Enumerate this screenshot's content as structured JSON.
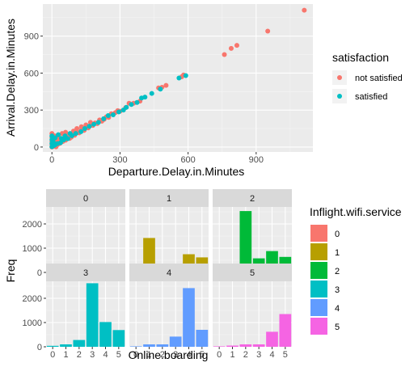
{
  "chart_data": [
    {
      "type": "scatter",
      "xlabel": "Departure.Delay.in.Minutes",
      "ylabel": "Arrival.Delay.in.Minutes",
      "xlim": [
        -40,
        1150
      ],
      "ylim": [
        -40,
        1160
      ],
      "xticks": [
        0,
        300,
        600,
        900
      ],
      "yticks": [
        0,
        300,
        600,
        900
      ],
      "legend": {
        "title": "satisfaction",
        "placement": "right"
      },
      "grid": true,
      "series": [
        {
          "name": "not satisfied",
          "color": "#F8766D",
          "points": [
            [
              1112,
              1110
            ],
            [
              951,
              940
            ],
            [
              815,
              825
            ],
            [
              790,
              800
            ],
            [
              760,
              750
            ],
            [
              580,
              585
            ],
            [
              572,
              570
            ],
            [
              503,
              500
            ],
            [
              485,
              485
            ],
            [
              470,
              480
            ],
            [
              388,
              372
            ],
            [
              360,
              355
            ],
            [
              340,
              355
            ],
            [
              325,
              320
            ],
            [
              300,
              290
            ],
            [
              290,
              295
            ],
            [
              280,
              280
            ],
            [
              262,
              270
            ],
            [
              250,
              240
            ],
            [
              240,
              245
            ],
            [
              230,
              225
            ],
            [
              220,
              210
            ],
            [
              210,
              220
            ],
            [
              200,
              190
            ],
            [
              190,
              195
            ],
            [
              180,
              175
            ],
            [
              172,
              180
            ],
            [
              160,
              155
            ],
            [
              150,
              160
            ],
            [
              142,
              135
            ],
            [
              130,
              140
            ],
            [
              120,
              115
            ],
            [
              112,
              120
            ],
            [
              100,
              95
            ],
            [
              92,
              105
            ],
            [
              85,
              80
            ],
            [
              78,
              70
            ],
            [
              70,
              75
            ],
            [
              60,
              55
            ],
            [
              55,
              65
            ],
            [
              48,
              45
            ],
            [
              40,
              50
            ],
            [
              35,
              30
            ],
            [
              30,
              40
            ],
            [
              25,
              20
            ],
            [
              20,
              30
            ],
            [
              15,
              10
            ],
            [
              10,
              18
            ],
            [
              5,
              5
            ],
            [
              2,
              12
            ],
            [
              0,
              0
            ],
            [
              0,
              20
            ],
            [
              0,
              45
            ],
            [
              0,
              80
            ],
            [
              0,
              110
            ],
            [
              8,
              60
            ],
            [
              12,
              90
            ],
            [
              18,
              2
            ],
            [
              22,
              60
            ],
            [
              30,
              80
            ],
            [
              45,
              110
            ],
            [
              60,
              120
            ],
            [
              75,
              100
            ],
            [
              95,
              130
            ],
            [
              110,
              150
            ],
            [
              130,
              165
            ],
            [
              150,
              180
            ],
            [
              170,
              200
            ]
          ]
        },
        {
          "name": "satisfied",
          "color": "#00BFC4",
          "points": [
            [
              590,
              580
            ],
            [
              560,
              560
            ],
            [
              478,
              470
            ],
            [
              440,
              435
            ],
            [
              410,
              405
            ],
            [
              395,
              398
            ],
            [
              375,
              362
            ],
            [
              350,
              345
            ],
            [
              328,
              322
            ],
            [
              315,
              300
            ],
            [
              295,
              285
            ],
            [
              270,
              262
            ],
            [
              248,
              255
            ],
            [
              228,
              230
            ],
            [
              205,
              200
            ],
            [
              185,
              185
            ],
            [
              165,
              168
            ],
            [
              145,
              150
            ],
            [
              128,
              125
            ],
            [
              105,
              110
            ],
            [
              88,
              92
            ],
            [
              70,
              68
            ],
            [
              52,
              58
            ],
            [
              38,
              35
            ],
            [
              24,
              28
            ],
            [
              12,
              15
            ],
            [
              4,
              8
            ],
            [
              0,
              3
            ],
            [
              0,
              30
            ],
            [
              0,
              60
            ],
            [
              0,
              90
            ],
            [
              6,
              40
            ],
            [
              14,
              75
            ],
            [
              28,
              100
            ],
            [
              42,
              70
            ],
            [
              58,
              90
            ],
            [
              80,
              110
            ]
          ]
        }
      ]
    },
    {
      "type": "bar",
      "facet_by": "Inflight.wifi.service",
      "xlabel": "Online.boarding",
      "ylabel": "Freq",
      "categories": [
        "0",
        "1",
        "2",
        "3",
        "4",
        "5"
      ],
      "ylim": [
        0,
        2700
      ],
      "yticks": [
        0,
        1000,
        2000
      ],
      "legend": {
        "title": "Inflight.wifi.service",
        "placement": "right"
      },
      "facets": [
        {
          "name": "0",
          "color": "#F8766D",
          "values": [
            290,
            30,
            40,
            40,
            150,
            180
          ]
        },
        {
          "name": "1",
          "color": "#B79F00",
          "values": [
            140,
            1420,
            230,
            330,
            750,
            620
          ]
        },
        {
          "name": "2",
          "color": "#00BA38",
          "values": [
            40,
            290,
            2530,
            580,
            880,
            640
          ]
        },
        {
          "name": "3",
          "color": "#00BFC4",
          "values": [
            40,
            100,
            280,
            2620,
            1020,
            690
          ]
        },
        {
          "name": "4",
          "color": "#619CFF",
          "values": [
            20,
            100,
            100,
            420,
            2420,
            700
          ]
        },
        {
          "name": "5",
          "color": "#F564E3",
          "values": [
            20,
            50,
            100,
            100,
            620,
            1350
          ]
        }
      ]
    }
  ]
}
